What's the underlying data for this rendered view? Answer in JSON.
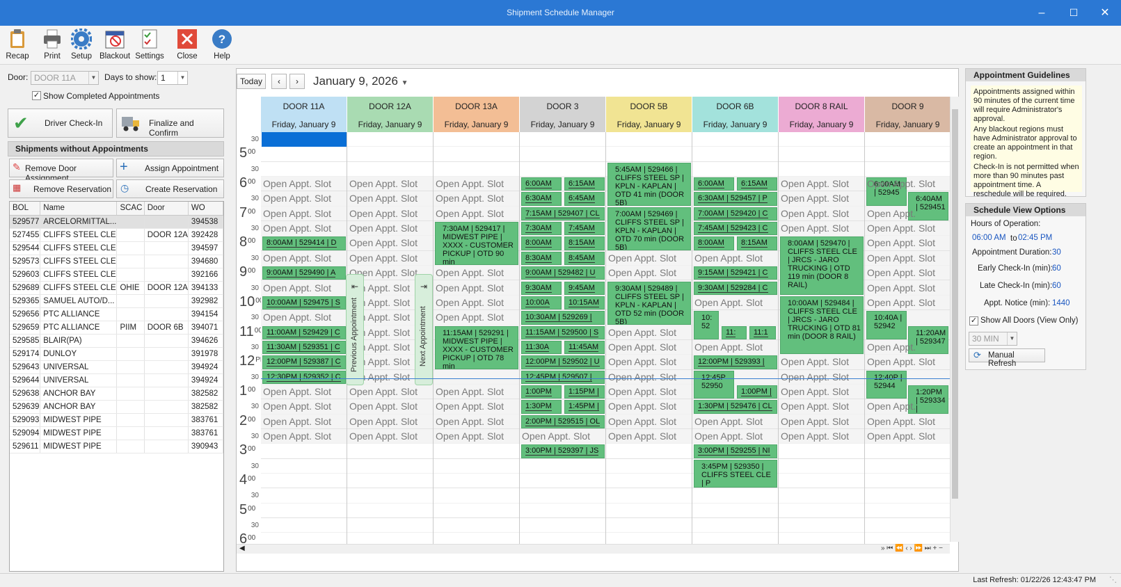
{
  "window": {
    "title": "Shipment Schedule Manager"
  },
  "toolbar": {
    "items": [
      {
        "label": "Recap",
        "icon": "clipboard-icon"
      },
      {
        "label": "Print",
        "icon": "printer-icon"
      },
      {
        "label": "Setup",
        "icon": "gear-icon"
      },
      {
        "label": "Blackout",
        "icon": "blackout-calendar-icon"
      },
      {
        "label": "Settings",
        "icon": "settings-checklist-icon"
      },
      {
        "label": "Close",
        "icon": "close-icon"
      },
      {
        "label": "Help",
        "icon": "help-icon"
      }
    ]
  },
  "filters": {
    "door_label": "Door:",
    "door_value": "DOOR 11A",
    "days_label": "Days to show:",
    "days_value": "1",
    "show_completed": "Show Completed Appointments"
  },
  "actions": {
    "checkin": "Driver Check-In",
    "finalize": "Finalize and Confirm"
  },
  "shipments": {
    "title": "Shipments without Appointments",
    "remove_door": "Remove Door Assignment",
    "assign": "Assign Appointment",
    "remove_res": "Remove Reservation",
    "create_res": "Create Reservation",
    "columns": [
      "BOL",
      "Name",
      "SCAC",
      "Door",
      "WO"
    ],
    "rows": [
      [
        "529577",
        "ARCELORMITTAL...",
        "",
        "",
        "394538"
      ],
      [
        "527455",
        "CLIFFS STEEL CLE",
        "",
        "DOOR 12A",
        "392428"
      ],
      [
        "529544",
        "CLIFFS STEEL CLE",
        "",
        "",
        "394597"
      ],
      [
        "529573",
        "CLIFFS STEEL CLE",
        "",
        "",
        "394680"
      ],
      [
        "529603",
        "CLIFFS STEEL CLE",
        "",
        "",
        "392166"
      ],
      [
        "529689",
        "CLIFFS STEEL CLE",
        "OHIE",
        "DOOR 12A",
        "394133"
      ],
      [
        "529365",
        "SAMUEL AUTO/D...",
        "",
        "",
        "392982"
      ],
      [
        "529656",
        "PTC ALLIANCE",
        "",
        "",
        "394154"
      ],
      [
        "529659",
        "PTC ALLIANCE",
        "PIIM",
        "DOOR 6B",
        "394071"
      ],
      [
        "529585",
        "BLAIR(PA)",
        "",
        "",
        "394626"
      ],
      [
        "529174",
        "DUNLOY",
        "",
        "",
        "391978"
      ],
      [
        "529643",
        "UNIVERSAL",
        "",
        "",
        "394924"
      ],
      [
        "529644",
        "UNIVERSAL",
        "",
        "",
        "394924"
      ],
      [
        "529638",
        "ANCHOR BAY",
        "",
        "",
        "382582"
      ],
      [
        "529639",
        "ANCHOR BAY",
        "",
        "",
        "382582"
      ],
      [
        "529093",
        "MIDWEST PIPE",
        "",
        "",
        "383761"
      ],
      [
        "529094",
        "MIDWEST PIPE",
        "",
        "",
        "383761"
      ],
      [
        "529611",
        "MIDWEST PIPE",
        "",
        "",
        "390943"
      ]
    ]
  },
  "calendar": {
    "today": "Today",
    "date": "January 9, 2026",
    "open_slot": "Open Appt. Slot",
    "doors": [
      {
        "name": "DOOR 11A",
        "date": "Friday, January 9",
        "color": "#bfe0f4"
      },
      {
        "name": "DOOR 12A",
        "date": "Friday, January 9",
        "color": "#a9dbb2"
      },
      {
        "name": "DOOR 13A",
        "date": "Friday, January 9",
        "color": "#f3be95"
      },
      {
        "name": "DOOR 3",
        "date": "Friday, January 9",
        "color": "#d3d3d3"
      },
      {
        "name": "DOOR 5B",
        "date": "Friday, January 9",
        "color": "#f1e493"
      },
      {
        "name": "DOOR 6B",
        "date": "Friday, January 9",
        "color": "#a3e2dc"
      },
      {
        "name": "DOOR 8 RAIL",
        "date": "Friday, January 9",
        "color": "#ecabd3"
      },
      {
        "name": "DOOR 9",
        "date": "Friday, January 9",
        "color": "#d9b9a4"
      }
    ],
    "hours": [
      {
        "h": "5",
        "m": "00"
      },
      {
        "h": "6",
        "m": "00"
      },
      {
        "h": "7",
        "m": "00"
      },
      {
        "h": "8",
        "m": "00"
      },
      {
        "h": "9",
        "m": "00"
      },
      {
        "h": "10",
        "m": "00"
      },
      {
        "h": "11",
        "m": "00"
      },
      {
        "h": "12",
        "m": "PM"
      },
      {
        "h": "1",
        "m": "00"
      },
      {
        "h": "2",
        "m": "00"
      },
      {
        "h": "3",
        "m": "00"
      },
      {
        "h": "4",
        "m": "00"
      },
      {
        "h": "5",
        "m": "00"
      },
      {
        "h": "6",
        "m": "00"
      }
    ],
    "half": "30",
    "prev_appt": "Previous Appointment",
    "next_appt": "Next Appointment",
    "appts": {
      "d11a": [
        "8:00AM | 529414 | D",
        "9:00AM | 529490 | A",
        "10:00AM | 529475 | S",
        "11:00AM | 529429 | C",
        "11:30AM | 529351 | C",
        "12:00PM | 529387 | C",
        "12:30PM | 529352 | C"
      ],
      "d13a": [
        "7:30AM | 529417 | MIDWEST PIPE | XXXX - CUSTOMER PICKUP | OTD 90 min",
        "11:15AM | 529291 | MIDWEST PIPE | XXXX - CUSTOMER PICKUP | OTD 78 min"
      ],
      "d3": [
        "6:00AM",
        "6:15AM",
        "6:30AM",
        "6:45AM",
        "7:15AM | 529407 | CL",
        "7:30AM",
        "7:45AM",
        "8:00AM",
        "8:15AM",
        "8:30AM",
        "8:45AM",
        "9:00AM | 529482 | U",
        "9:30AM",
        "9:45AM",
        "10:00A",
        "10:15AM",
        "10:30AM | 529269 |",
        "11:15AM | 529500 | S",
        "11:30A",
        "11:45AM",
        "12:00PM | 529502 | U",
        "12:45PM | 529507 |",
        "1:00PM",
        "1:15PM |",
        "1:30PM",
        "1:45PM |",
        "2:00PM | 529515 | OL",
        "3:00PM | 529397 | JS"
      ],
      "d5b": [
        "5:45AM | 529466 | CLIFFS STEEL SP | KPLN - KAPLAN | OTD 41 min (DOOR 5B)",
        "7:00AM | 529469 | CLIFFS STEEL SP | KPLN - KAPLAN | OTD 70 min (DOOR 5B)",
        "9:30AM | 529489 | CLIFFS STEEL SP | KPLN - KAPLAN | OTD 52 min (DOOR 5B)"
      ],
      "d6b": [
        "6:00AM",
        "6:15AM",
        "6:30AM | 529457 | P",
        "7:00AM | 529420 | C",
        "7:45AM | 529423 | C",
        "8:00AM",
        "8:15AM",
        "9:15AM | 529421 | C",
        "9:30AM | 529284 | C",
        "10: 52",
        "11:",
        "11:1",
        "12:00PM | 529393 |",
        "12:45P 52950",
        "1:00PM |",
        "1:30PM | 529476 | CL",
        "3:00PM | 529255 | NI",
        "3:45PM | 529350 | CLIFFS STEEL CLE | P"
      ],
      "d8": [
        "8:00AM | 529470 | CLIFFS STEEL CLE | JRCS - JARO TRUCKING | OTD 119 min (DOOR 8 RAIL)",
        "10:00AM | 529484 | CLIFFS STEEL CLE | JRCS - JARO TRUCKING | OTD 81 min (DOOR 8 RAIL)"
      ],
      "d9": [
        "6:00AM | 52945",
        "6:40AM | 529451",
        "10:40A | 52942",
        "11:20AM | 529347",
        "12:40P | 52944",
        "1:20PM | 529334 |"
      ]
    },
    "open_partial": "Open Appt.",
    "open_frag": "pen Appt. Slot",
    "pager": "» ⏮ ⏪ ‹ › ⏩ ⏭ + −"
  },
  "guidelines": {
    "title": "Appointment Guidelines",
    "notes": [
      "Appointments assigned within 90 minutes of the current time will require Administrator's approval.",
      "Any blackout regions must have Administrator approval to create an appointment in that region.",
      "Check-In is not permitted when more than 90 minutes past appointment time. A reschedule will be required."
    ]
  },
  "view_options": {
    "title": "Schedule View Options",
    "hours_label": "Hours of Operation:",
    "start": "06:00 AM",
    "to": "to",
    "end": "02:45 PM",
    "duration_label": "Appointment Duration:",
    "duration": "30",
    "early_label": "Early Check-In (min):",
    "early": "60",
    "late_label": "Late Check-In (min):",
    "late": "60",
    "notice_label": "Appt. Notice (min):",
    "notice": "1440",
    "show_all": "Show All Doors (View Only)",
    "interval": "30 MIN",
    "refresh": "Manual Refresh"
  },
  "status": {
    "last_refresh": "Last Refresh: 01/22/26 12:43:47 PM"
  }
}
